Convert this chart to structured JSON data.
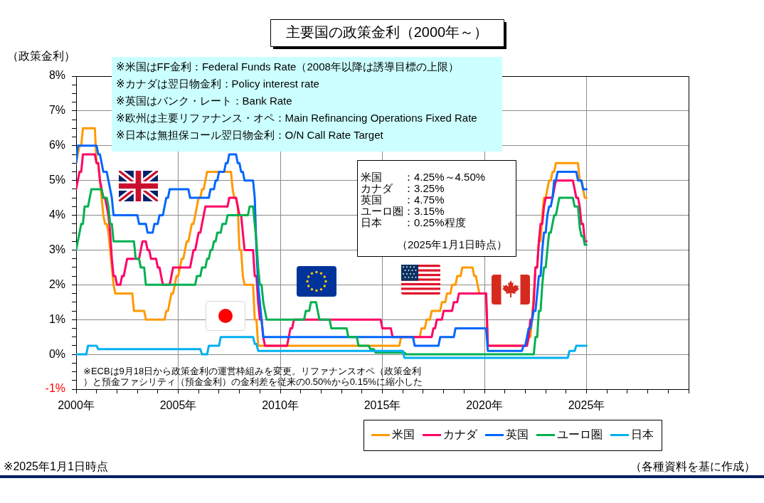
{
  "chart_data": {
    "type": "line",
    "title": "主要国の政策金利（2000年～）",
    "ylabel": "（政策金利）",
    "xlim": [
      "2000",
      "2030"
    ],
    "xticks": [
      {
        "value": "2000",
        "label": "2000年"
      },
      {
        "value": "2001",
        "label": null
      },
      {
        "value": "2002",
        "label": null
      },
      {
        "value": "2003",
        "label": null
      },
      {
        "value": "2004",
        "label": null
      },
      {
        "value": "2005",
        "label": "2005年"
      },
      {
        "value": "2006",
        "label": null
      },
      {
        "value": "2007",
        "label": null
      },
      {
        "value": "2008",
        "label": null
      },
      {
        "value": "2009",
        "label": null
      },
      {
        "value": "2010",
        "label": "2010年"
      },
      {
        "value": "2011",
        "label": null
      },
      {
        "value": "2012",
        "label": null
      },
      {
        "value": "2013",
        "label": null
      },
      {
        "value": "2014",
        "label": null
      },
      {
        "value": "2015",
        "label": "2015年"
      },
      {
        "value": "2016",
        "label": null
      },
      {
        "value": "2017",
        "label": null
      },
      {
        "value": "2018",
        "label": null
      },
      {
        "value": "2019",
        "label": null
      },
      {
        "value": "2020",
        "label": "2020年"
      },
      {
        "value": "2021",
        "label": null
      },
      {
        "value": "2022",
        "label": null
      },
      {
        "value": "2023",
        "label": null
      },
      {
        "value": "2024",
        "label": null
      },
      {
        "value": "2025",
        "label": "2025年"
      },
      {
        "value": "2026",
        "label": null
      },
      {
        "value": "2027",
        "label": null
      },
      {
        "value": "2028",
        "label": null
      },
      {
        "value": "2029",
        "label": null
      },
      {
        "value": "2030",
        "label": null
      }
    ],
    "ylim": [
      -1,
      8
    ],
    "yticks": [
      {
        "value": -1,
        "label": "-1%"
      },
      {
        "value": -0.75,
        "label": null
      },
      {
        "value": -0.5,
        "label": null
      },
      {
        "value": -0.25,
        "label": null
      },
      {
        "value": 0,
        "label": "0%"
      },
      {
        "value": 0.25,
        "label": null
      },
      {
        "value": 0.5,
        "label": null
      },
      {
        "value": 0.75,
        "label": null
      },
      {
        "value": 1,
        "label": "1%"
      },
      {
        "value": 1.25,
        "label": null
      },
      {
        "value": 1.5,
        "label": null
      },
      {
        "value": 1.75,
        "label": null
      },
      {
        "value": 2,
        "label": "2%"
      },
      {
        "value": 2.25,
        "label": null
      },
      {
        "value": 2.5,
        "label": null
      },
      {
        "value": 2.75,
        "label": null
      },
      {
        "value": 3,
        "label": "3%"
      },
      {
        "value": 3.25,
        "label": null
      },
      {
        "value": 3.5,
        "label": null
      },
      {
        "value": 3.75,
        "label": null
      },
      {
        "value": 4,
        "label": "4%"
      },
      {
        "value": 4.25,
        "label": null
      },
      {
        "value": 4.5,
        "label": null
      },
      {
        "value": 4.75,
        "label": null
      },
      {
        "value": 5,
        "label": "5%"
      },
      {
        "value": 5.25,
        "label": null
      },
      {
        "value": 5.5,
        "label": null
      },
      {
        "value": 5.75,
        "label": null
      },
      {
        "value": 6,
        "label": "6%"
      },
      {
        "value": 6.25,
        "label": null
      },
      {
        "value": 6.5,
        "label": null
      },
      {
        "value": 6.75,
        "label": null
      },
      {
        "value": 7,
        "label": "7%"
      },
      {
        "value": 7.25,
        "label": null
      },
      {
        "value": 7.5,
        "label": null
      },
      {
        "value": 7.75,
        "label": null
      },
      {
        "value": 8,
        "label": "8%"
      }
    ],
    "grid": true,
    "legend": "bottom",
    "series": [
      {
        "name": "米国",
        "color": "#ff9900",
        "x": [
          "2000-01",
          "2000-02",
          "2000-03",
          "2000-04",
          "2000-05",
          "2000-12",
          "2001-01",
          "2001-02",
          "2001-03",
          "2001-04",
          "2001-05",
          "2001-06",
          "2001-07",
          "2001-08",
          "2001-09",
          "2001-10",
          "2001-11",
          "2001-12",
          "2002-10",
          "2002-11",
          "2003-05",
          "2003-06",
          "2004-05",
          "2004-06",
          "2004-07",
          "2004-08",
          "2004-09",
          "2004-10",
          "2004-11",
          "2004-12",
          "2005-01",
          "2005-02",
          "2005-03",
          "2005-04",
          "2005-05",
          "2005-06",
          "2005-07",
          "2005-08",
          "2005-09",
          "2005-10",
          "2005-11",
          "2005-12",
          "2006-01",
          "2006-02",
          "2006-03",
          "2006-04",
          "2006-05",
          "2006-06",
          "2007-08",
          "2007-09",
          "2007-10",
          "2007-11",
          "2007-12",
          "2008-01",
          "2008-02",
          "2008-03",
          "2008-04",
          "2008-09",
          "2008-10",
          "2008-11",
          "2008-12",
          "2015-11",
          "2015-12",
          "2016-11",
          "2016-12",
          "2017-02",
          "2017-03",
          "2017-05",
          "2017-06",
          "2017-11",
          "2017-12",
          "2018-02",
          "2018-03",
          "2018-05",
          "2018-06",
          "2018-08",
          "2018-09",
          "2018-11",
          "2018-12",
          "2019-06",
          "2019-07",
          "2019-08",
          "2019-09",
          "2019-10",
          "2020-02",
          "2020-03",
          "2022-02",
          "2022-03",
          "2022-04",
          "2022-05",
          "2022-06",
          "2022-07",
          "2022-08",
          "2022-09",
          "2022-10",
          "2022-11",
          "2022-12",
          "2023-01",
          "2023-02",
          "2023-03",
          "2023-04",
          "2023-05",
          "2023-06",
          "2023-07",
          "2024-08",
          "2024-09",
          "2024-10",
          "2024-11",
          "2024-12",
          "2025-01"
        ],
        "values": [
          5.5,
          5.75,
          6,
          6,
          6.5,
          6.5,
          5.5,
          5.5,
          5,
          4.5,
          4,
          3.75,
          3.75,
          3.5,
          3,
          2.5,
          2,
          1.75,
          1.75,
          1.25,
          1.25,
          1,
          1,
          1.25,
          1.25,
          1.5,
          1.75,
          1.75,
          2,
          2.25,
          2.25,
          2.5,
          2.75,
          2.75,
          3,
          3.25,
          3.25,
          3.5,
          3.75,
          3.75,
          4,
          4.25,
          4.5,
          4.5,
          4.75,
          4.75,
          5,
          5.25,
          5.25,
          4.75,
          4.5,
          4.5,
          4.25,
          3,
          3,
          2.25,
          2,
          2,
          1,
          1,
          0.25,
          0.25,
          0.5,
          0.5,
          0.75,
          0.75,
          1,
          1,
          1.25,
          1.25,
          1.5,
          1.5,
          1.75,
          1.75,
          2,
          2,
          2.25,
          2.25,
          2.5,
          2.5,
          2.25,
          2.25,
          2,
          1.75,
          1.75,
          0.25,
          0.25,
          0.5,
          0.5,
          1,
          1.75,
          2.5,
          2.5,
          3.25,
          3.25,
          4,
          4.5,
          4.5,
          4.75,
          5,
          5,
          5.25,
          5.25,
          5.5,
          5.5,
          5,
          5,
          4.75,
          4.5,
          4.5
        ]
      },
      {
        "name": "カナダ",
        "color": "#ff0066",
        "x": [
          "2000-01",
          "2000-02",
          "2000-03",
          "2000-04",
          "2000-05",
          "2000-12",
          "2001-01",
          "2001-02",
          "2001-03",
          "2001-04",
          "2001-05",
          "2001-06",
          "2001-07",
          "2001-08",
          "2001-09",
          "2001-10",
          "2001-11",
          "2001-12",
          "2002-01",
          "2002-03",
          "2002-04",
          "2002-05",
          "2002-06",
          "2002-07",
          "2003-02",
          "2003-03",
          "2003-04",
          "2003-06",
          "2003-07",
          "2003-08",
          "2003-09",
          "2003-12",
          "2004-01",
          "2004-02",
          "2004-03",
          "2004-04",
          "2004-08",
          "2004-09",
          "2004-10",
          "2005-08",
          "2005-09",
          "2005-10",
          "2005-11",
          "2005-12",
          "2006-01",
          "2006-02",
          "2006-03",
          "2006-04",
          "2006-05",
          "2007-06",
          "2007-07",
          "2007-11",
          "2007-12",
          "2008-01",
          "2008-02",
          "2008-03",
          "2008-04",
          "2008-09",
          "2008-10",
          "2008-11",
          "2008-12",
          "2009-01",
          "2009-02",
          "2009-03",
          "2009-04",
          "2010-05",
          "2010-06",
          "2010-07",
          "2010-08",
          "2010-09",
          "2014-12",
          "2015-01",
          "2015-06",
          "2015-07",
          "2017-06",
          "2017-07",
          "2017-08",
          "2017-09",
          "2017-12",
          "2018-01",
          "2018-06",
          "2018-07",
          "2018-09",
          "2018-10",
          "2020-02",
          "2020-03",
          "2022-02",
          "2022-03",
          "2022-04",
          "2022-05",
          "2022-06",
          "2022-07",
          "2022-08",
          "2022-09",
          "2022-10",
          "2022-11",
          "2022-12",
          "2023-01",
          "2023-05",
          "2023-06",
          "2023-07",
          "2024-05",
          "2024-06",
          "2024-07",
          "2024-08",
          "2024-09",
          "2024-10",
          "2024-11",
          "2024-12",
          "2025-01"
        ],
        "values": [
          4.75,
          5,
          5.25,
          5.25,
          5.75,
          5.75,
          5.5,
          5.5,
          5,
          4.75,
          4.5,
          4.5,
          4.25,
          4,
          3.5,
          2.75,
          2.25,
          2.25,
          2,
          2,
          2.25,
          2.25,
          2.5,
          2.75,
          2.75,
          3,
          3.25,
          3.25,
          3,
          3,
          2.75,
          2.75,
          2.5,
          2.5,
          2.25,
          2,
          2,
          2.25,
          2.5,
          2.5,
          2.75,
          3,
          3,
          3.25,
          3.5,
          3.5,
          3.75,
          4,
          4.25,
          4.25,
          4.5,
          4.5,
          4.25,
          4,
          4,
          3.5,
          3,
          3,
          2.25,
          2.25,
          1.5,
          1,
          1,
          0.5,
          0.25,
          0.25,
          0.5,
          0.75,
          0.75,
          1,
          1,
          0.75,
          0.75,
          0.5,
          0.5,
          0.75,
          0.75,
          1,
          1,
          1.25,
          1.25,
          1.5,
          1.5,
          1.75,
          1.75,
          0.25,
          0.25,
          0.5,
          1,
          1,
          1.5,
          2.5,
          2.5,
          3.25,
          3.75,
          3.75,
          4.25,
          4.5,
          4.5,
          4.75,
          5,
          5,
          4.75,
          4.5,
          4.5,
          4.25,
          3.75,
          3.75,
          3.25,
          3.25
        ]
      },
      {
        "name": "英国",
        "color": "#0066ff",
        "x": [
          "2000-01",
          "2000-02",
          "2001-01",
          "2001-02",
          "2001-03",
          "2001-04",
          "2001-05",
          "2001-07",
          "2001-08",
          "2001-09",
          "2001-10",
          "2001-11",
          "2003-01",
          "2003-02",
          "2003-06",
          "2003-07",
          "2003-10",
          "2003-11",
          "2004-01",
          "2004-02",
          "2004-04",
          "2004-05",
          "2004-06",
          "2004-07",
          "2004-08",
          "2005-07",
          "2005-08",
          "2006-07",
          "2006-08",
          "2006-10",
          "2006-11",
          "2006-12",
          "2007-01",
          "2007-04",
          "2007-05",
          "2007-06",
          "2007-07",
          "2007-11",
          "2007-12",
          "2008-01",
          "2008-02",
          "2008-03",
          "2008-04",
          "2008-09",
          "2008-10",
          "2008-11",
          "2008-12",
          "2009-01",
          "2009-02",
          "2009-03",
          "2016-07",
          "2016-08",
          "2017-10",
          "2017-11",
          "2018-07",
          "2018-08",
          "2020-02",
          "2020-03",
          "2021-11",
          "2021-12",
          "2022-01",
          "2022-02",
          "2022-03",
          "2022-04",
          "2022-05",
          "2022-06",
          "2022-07",
          "2022-08",
          "2022-09",
          "2022-10",
          "2022-11",
          "2022-12",
          "2023-01",
          "2023-02",
          "2023-03",
          "2023-04",
          "2023-05",
          "2023-06",
          "2023-07",
          "2023-08",
          "2024-07",
          "2024-08",
          "2024-10",
          "2024-11",
          "2025-01"
        ],
        "values": [
          5.5,
          6,
          6,
          5.75,
          5.75,
          5.5,
          5.25,
          5.25,
          5,
          4.75,
          4.5,
          4,
          4,
          3.75,
          3.75,
          3.5,
          3.5,
          3.75,
          3.75,
          4,
          4,
          4.25,
          4.5,
          4.5,
          4.75,
          4.75,
          4.5,
          4.5,
          4.75,
          4.75,
          5,
          5,
          5.25,
          5.25,
          5.5,
          5.5,
          5.75,
          5.75,
          5.5,
          5.5,
          5.25,
          5.25,
          5,
          5,
          4.5,
          3,
          2,
          1.5,
          1,
          0.5,
          0.5,
          0.25,
          0.25,
          0.5,
          0.5,
          0.75,
          0.75,
          0.1,
          0.1,
          0.25,
          0.25,
          0.5,
          0.75,
          0.75,
          1,
          1.25,
          1.25,
          1.75,
          2.25,
          2.25,
          3,
          3.5,
          3.5,
          4,
          4.25,
          4.25,
          4.5,
          5,
          5,
          5.25,
          5.25,
          5,
          5,
          4.75,
          4.75
        ]
      },
      {
        "name": "ユーロ圏",
        "color": "#00b050",
        "x": [
          "2000-01",
          "2000-02",
          "2000-03",
          "2000-04",
          "2000-05",
          "2000-06",
          "2000-08",
          "2000-09",
          "2000-10",
          "2001-04",
          "2001-05",
          "2001-07",
          "2001-08",
          "2001-09",
          "2001-10",
          "2001-11",
          "2002-11",
          "2002-12",
          "2003-02",
          "2003-03",
          "2003-05",
          "2003-06",
          "2005-11",
          "2005-12",
          "2006-02",
          "2006-03",
          "2006-05",
          "2006-06",
          "2006-07",
          "2006-08",
          "2006-09",
          "2006-10",
          "2006-11",
          "2006-12",
          "2007-02",
          "2007-03",
          "2007-05",
          "2007-06",
          "2008-06",
          "2008-07",
          "2008-09",
          "2008-10",
          "2008-11",
          "2008-12",
          "2009-01",
          "2009-02",
          "2009-03",
          "2009-04",
          "2009-05",
          "2011-03",
          "2011-04",
          "2011-06",
          "2011-07",
          "2011-10",
          "2011-11",
          "2011-12",
          "2012-06",
          "2012-07",
          "2013-04",
          "2013-05",
          "2013-10",
          "2013-11",
          "2014-05",
          "2014-06",
          "2014-08",
          "2014-09",
          "2016-02",
          "2016-03",
          "2022-06",
          "2022-07",
          "2022-08",
          "2022-09",
          "2022-10",
          "2022-11",
          "2022-12",
          "2023-01",
          "2023-02",
          "2023-03",
          "2023-04",
          "2023-05",
          "2023-06",
          "2023-07",
          "2023-08",
          "2023-09",
          "2024-05",
          "2024-06",
          "2024-08",
          "2024-09",
          "2024-10",
          "2024-11",
          "2024-12",
          "2025-01"
        ],
        "values": [
          3,
          3.25,
          3.5,
          3.75,
          3.75,
          4.25,
          4.25,
          4.5,
          4.75,
          4.75,
          4.5,
          4.5,
          4.25,
          3.75,
          3.75,
          3.25,
          3.25,
          2.75,
          2.75,
          2.5,
          2.5,
          2,
          2,
          2.25,
          2.25,
          2.5,
          2.5,
          2.75,
          2.75,
          3,
          3,
          3.25,
          3.25,
          3.5,
          3.5,
          3.75,
          3.75,
          4,
          4,
          4.25,
          4.25,
          3.75,
          3.25,
          2.5,
          2,
          2,
          1.5,
          1.25,
          1,
          1,
          1.25,
          1.25,
          1.5,
          1.5,
          1.25,
          1,
          1,
          0.75,
          0.75,
          0.5,
          0.5,
          0.25,
          0.25,
          0.15,
          0.15,
          0.05,
          0.05,
          0,
          0,
          0.5,
          0.5,
          1.25,
          1.25,
          2,
          2.5,
          2.5,
          3,
          3.5,
          3.5,
          3.75,
          4,
          4,
          4.25,
          4.5,
          4.5,
          4.25,
          4.25,
          3.65,
          3.4,
          3.4,
          3.15,
          3.15
        ]
      },
      {
        "name": "日本",
        "color": "#00b0f0",
        "x": [
          "2000-01",
          "2000-07",
          "2000-08",
          "2001-01",
          "2001-02",
          "2006-02",
          "2006-03",
          "2006-06",
          "2006-07",
          "2007-01",
          "2007-02",
          "2008-09",
          "2008-10",
          "2008-11",
          "2008-12",
          "2016-01",
          "2016-02",
          "2024-02",
          "2024-03",
          "2024-06",
          "2024-07",
          "2025-01"
        ],
        "values": [
          0,
          0,
          0.25,
          0.25,
          0.15,
          0.15,
          0,
          0,
          0.25,
          0.25,
          0.5,
          0.5,
          0.3,
          0.3,
          0.1,
          0.1,
          -0.1,
          -0.1,
          0.1,
          0.1,
          0.25,
          0.25
        ]
      }
    ],
    "annotations": [
      "※米国はFF金利：Federal Funds Rate（2008年以降は誘導目標の上限）",
      "※カナダは翌日物金利：Policy interest rate",
      "※英国はバンク・レート：Bank Rate",
      "※欧州は主要リファナンス・オペ：Main Refinancing Operations Fixed Rate",
      "※日本は無担保コール翌日物金利：O/N Call Rate Target",
      "米国　　：4.25%～4.50%",
      "カナダ　：3.25%",
      "英国　　：4.75%",
      "ユーロ圏：3.15%",
      "日本　　：0.25%程度",
      "（2025年1月1日時点）",
      "※ECBは9月18日から政策金利の運営枠組みを変更。リファナンスオペ（政策金利）と預金ファシリティ（預金金利）の金利差を従来の0.50%から0.15%に縮小した",
      "※2025年1月1日時点",
      "（各種資料を基に作成）"
    ]
  }
}
